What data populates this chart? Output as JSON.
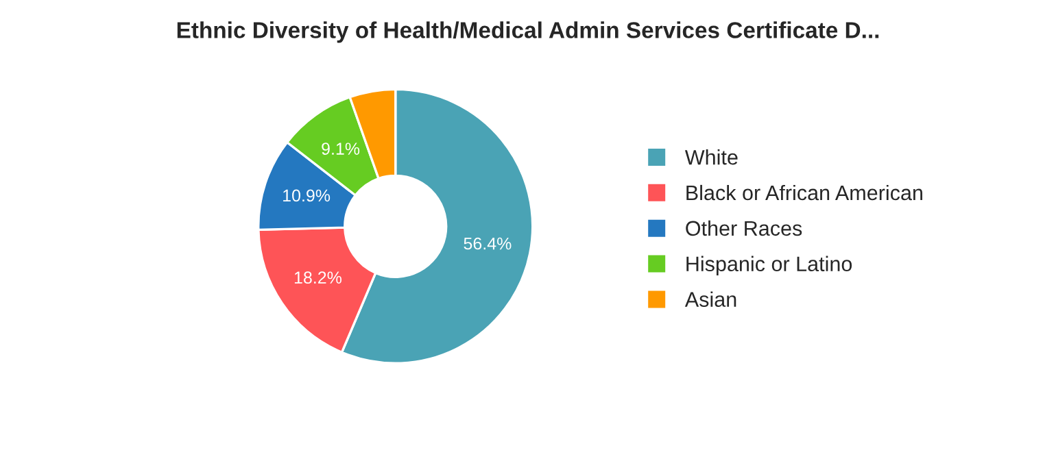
{
  "chart_data": {
    "type": "donut",
    "title": "Ethnic Diversity of Health/Medical Admin Services Certificate D...",
    "categories": [
      "White",
      "Black or African American",
      "Other Races",
      "Hispanic or Latino",
      "Asian"
    ],
    "values": [
      56.4,
      18.2,
      10.9,
      9.1,
      5.4
    ],
    "colors": [
      "#4aa3b5",
      "#fe5457",
      "#2478c0",
      "#66cc22",
      "#ff9900"
    ],
    "value_labels": [
      "56.4%",
      "18.2%",
      "10.9%",
      "9.1%",
      null
    ],
    "legend": "right"
  }
}
